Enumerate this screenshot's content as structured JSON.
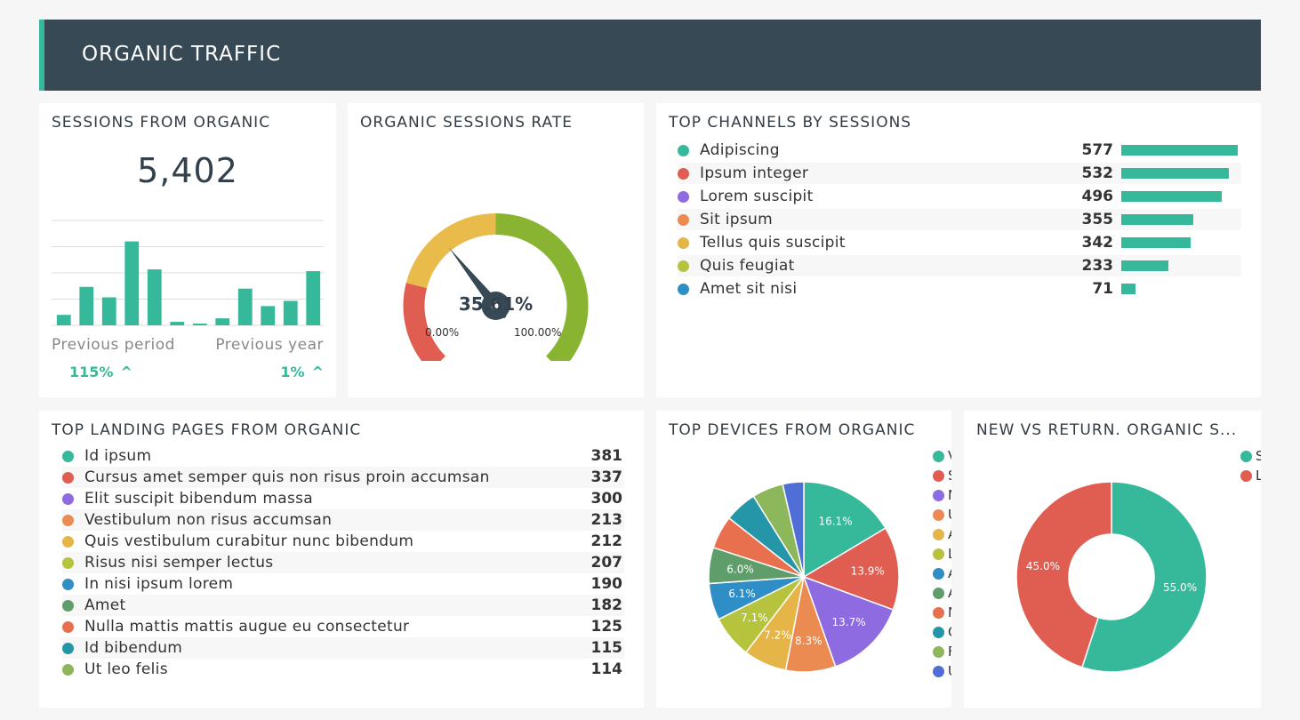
{
  "header": {
    "title": "ORGANIC TRAFFIC"
  },
  "sessions": {
    "title": "SESSIONS FROM ORGANIC",
    "value": "5,402",
    "prev_period_label": "Previous period",
    "prev_year_label": "Previous year",
    "prev_period_change": "115%",
    "prev_year_change": "1%",
    "up_icon": "chevron-up-icon",
    "accent": "#36b99a"
  },
  "gauge": {
    "title": "ORGANIC SESSIONS RATE",
    "value_label": "35.61%",
    "min_label": "0.00%",
    "max_label": "100.00%",
    "colors": [
      "#e05d52",
      "#e9bb4b",
      "#88b432"
    ]
  },
  "channels": {
    "title": "TOP CHANNELS BY SESSIONS",
    "items": [
      {
        "name": "Adipiscing",
        "value": "577",
        "color": "#36b99a"
      },
      {
        "name": "Ipsum integer",
        "value": "532",
        "color": "#e05d52"
      },
      {
        "name": "Lorem suscipit",
        "value": "496",
        "color": "#8f6be1"
      },
      {
        "name": "Sit ipsum",
        "value": "355",
        "color": "#ec8b51"
      },
      {
        "name": "Tellus quis suscipit",
        "value": "342",
        "color": "#e5b548"
      },
      {
        "name": "Quis feugiat",
        "value": "233",
        "color": "#b5c43c"
      },
      {
        "name": "Amet sit nisi",
        "value": "71",
        "color": "#2f8ec5"
      }
    ]
  },
  "landing": {
    "title": "TOP LANDING PAGES FROM ORGANIC",
    "items": [
      {
        "name": "Id ipsum",
        "value": "381",
        "color": "#36b99a"
      },
      {
        "name": "Cursus amet semper quis non risus proin accumsan",
        "value": "337",
        "color": "#e05d52"
      },
      {
        "name": "Elit suscipit bibendum massa",
        "value": "300",
        "color": "#8f6be1"
      },
      {
        "name": "Vestibulum non risus accumsan",
        "value": "213",
        "color": "#ec8b51"
      },
      {
        "name": "Quis vestibulum curabitur nunc bibendum",
        "value": "212",
        "color": "#e5b548"
      },
      {
        "name": "Risus nisi semper lectus",
        "value": "207",
        "color": "#b5c43c"
      },
      {
        "name": "In nisi ipsum lorem",
        "value": "190",
        "color": "#2f8ec5"
      },
      {
        "name": "Amet",
        "value": "182",
        "color": "#5f9e6a"
      },
      {
        "name": "Nulla mattis mattis augue eu consectetur",
        "value": "125",
        "color": "#e9704f"
      },
      {
        "name": "Id bibendum",
        "value": "115",
        "color": "#2596a8"
      },
      {
        "name": "Ut leo felis",
        "value": "114",
        "color": "#8cb75a"
      }
    ]
  },
  "devices": {
    "title": "TOP DEVICES FROM ORGANIC"
  },
  "newret": {
    "title": "NEW VS RETURN. ORGANIC S..."
  },
  "chart_data": [
    {
      "type": "bar",
      "values": [
        3,
        11,
        8,
        24,
        16,
        1,
        0.5,
        2,
        10.5,
        5.5,
        7,
        15.5
      ],
      "ylim": [
        0,
        30
      ],
      "grid": true,
      "color": "#36b99a"
    },
    {
      "type": "gauge",
      "value": 35.61,
      "range": [
        0,
        100
      ]
    },
    {
      "type": "bar",
      "orientation": "horizontal",
      "categories": [
        "Adipiscing",
        "Ipsum integer",
        "Lorem suscipit",
        "Sit ipsum",
        "Tellus quis suscipit",
        "Quis feugiat",
        "Amet sit nisi"
      ],
      "values": [
        577,
        532,
        496,
        355,
        342,
        233,
        71
      ]
    },
    {
      "type": "pie",
      "legend_truncated": [
        "V",
        "S",
        "N",
        "U",
        "A",
        "L",
        "A",
        "A",
        "N",
        "C",
        "F",
        "U"
      ],
      "values": [
        16.1,
        13.9,
        13.7,
        8.3,
        7.2,
        7.1,
        6.1,
        6.0,
        5.5,
        5.4,
        5.2,
        3.5
      ],
      "labels": [
        "16.1%",
        "13.9%",
        "13.7%",
        "8.3%",
        "7.2%",
        "7.1%",
        "6.1%",
        "6.0%",
        "",
        "",
        "",
        ""
      ],
      "colors": [
        "#36b99a",
        "#e05d52",
        "#8f6be1",
        "#ec8b51",
        "#e5b548",
        "#b5c43c",
        "#2f8ec5",
        "#5f9e6a",
        "#e9704f",
        "#2596a8",
        "#8cb75a",
        "#4f6fd6"
      ]
    },
    {
      "type": "pie",
      "donut": true,
      "legend_truncated": [
        "S",
        "L"
      ],
      "values": [
        55.0,
        45.0
      ],
      "labels": [
        "55.0%",
        "45.0%"
      ],
      "colors": [
        "#36b99a",
        "#e05d52"
      ]
    }
  ]
}
